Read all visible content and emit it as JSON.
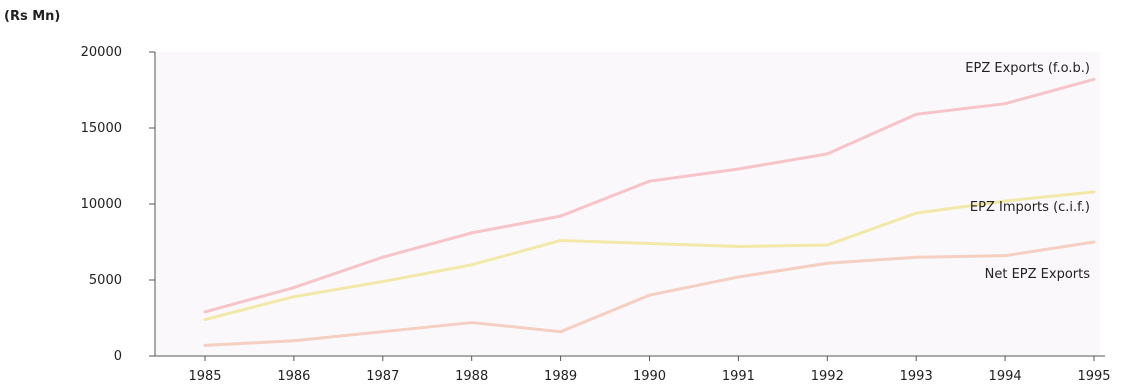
{
  "chart_data": {
    "type": "line",
    "ylabel": "(Rs Mn)",
    "x": [
      "1985",
      "1986",
      "1987",
      "1988",
      "1989",
      "1990",
      "1991",
      "1992",
      "1993",
      "1994",
      "1995"
    ],
    "ylim": [
      0,
      20000
    ],
    "yticks": [
      "20000",
      "15000",
      "10000",
      "5000",
      "0"
    ],
    "ytick_values": [
      20000,
      15000,
      10000,
      5000,
      0
    ],
    "grid": false,
    "series": [
      {
        "name": "EPZ Exports (f.o.b.)",
        "color": "#f6c4c9",
        "values": [
          2900,
          4500,
          6500,
          8100,
          9200,
          11500,
          12300,
          13300,
          15900,
          16600,
          18200
        ]
      },
      {
        "name": "EPZ Imports (c.i.f.)",
        "color": "#f2e9a8",
        "values": [
          2400,
          3900,
          4900,
          6000,
          7600,
          7400,
          7200,
          7300,
          9400,
          10200,
          10800
        ]
      },
      {
        "name": "Net EPZ Exports",
        "color": "#f4cfc2",
        "values": [
          700,
          1000,
          1600,
          2200,
          1600,
          4000,
          5200,
          6100,
          6500,
          6600,
          7500
        ]
      }
    ]
  }
}
